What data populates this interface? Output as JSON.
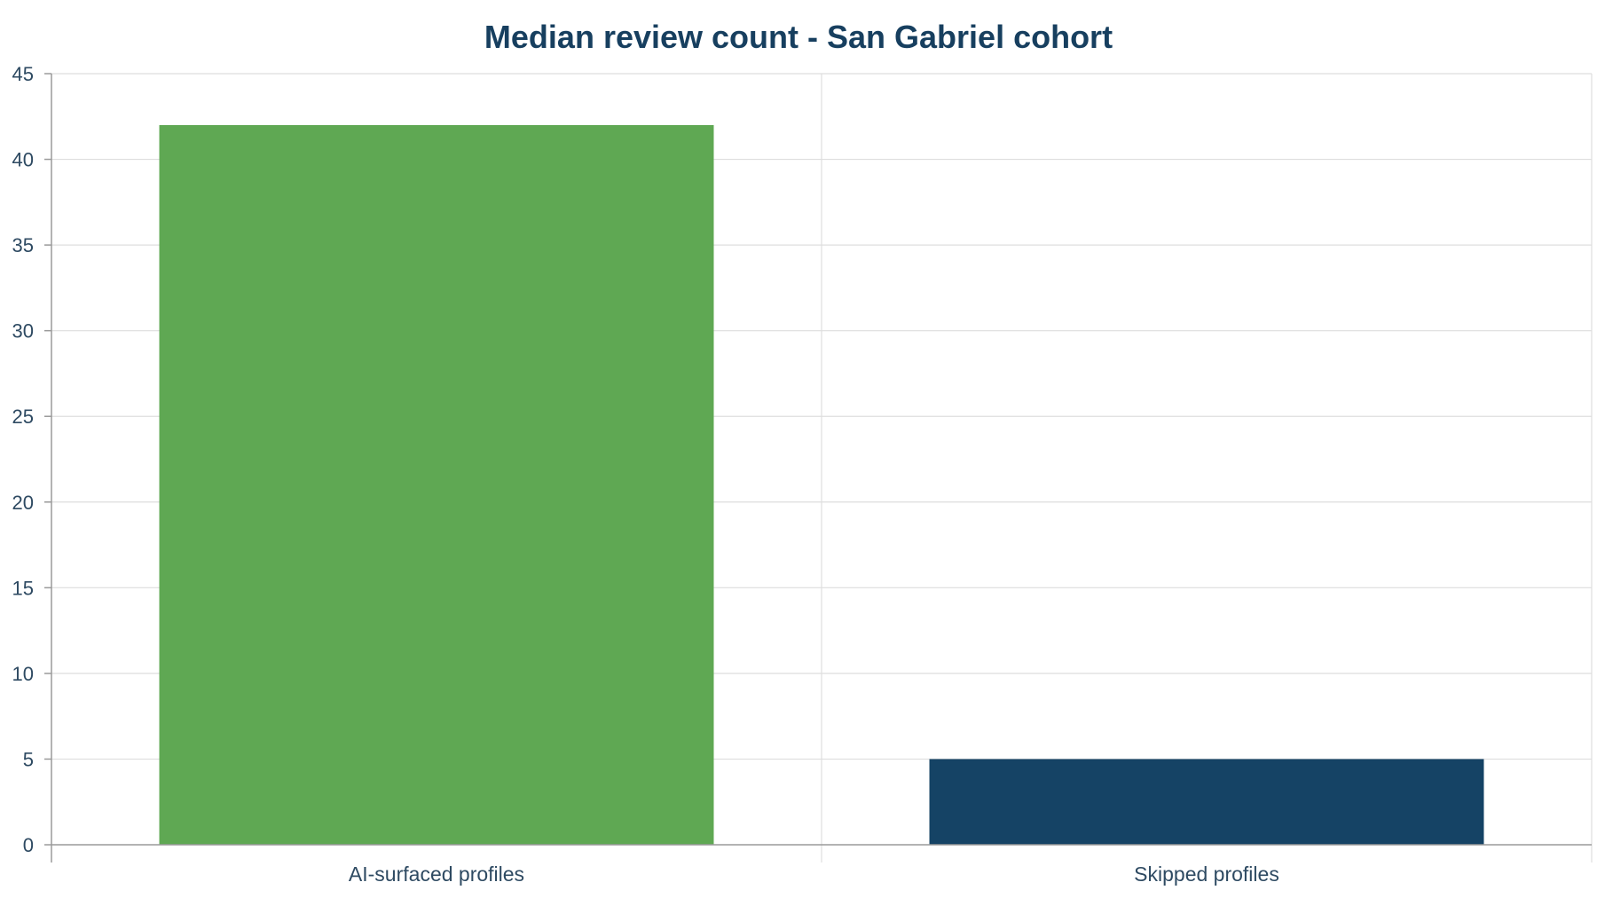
{
  "chart_data": {
    "type": "bar",
    "title": "Median review count - San Gabriel cohort",
    "categories": [
      "AI-surfaced profiles",
      "Skipped profiles"
    ],
    "values": [
      42,
      5
    ],
    "colors": [
      "#5fa853",
      "#154365"
    ],
    "ylim": [
      0,
      45
    ],
    "yticks": [
      0,
      5,
      10,
      15,
      20,
      25,
      30,
      35,
      40,
      45
    ],
    "xlabel": "",
    "ylabel": "",
    "grid": true,
    "legend": "none"
  }
}
